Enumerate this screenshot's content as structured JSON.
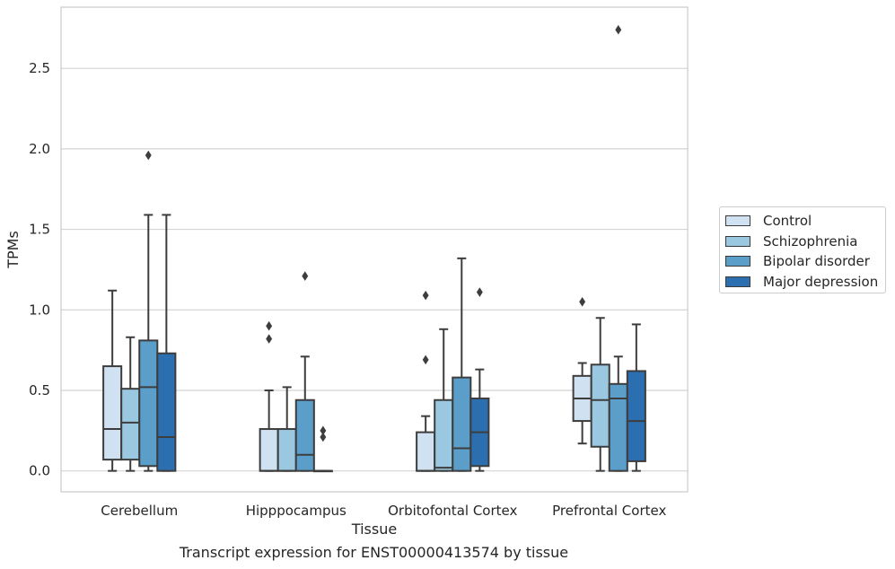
{
  "chart_data": {
    "type": "box",
    "title": "",
    "caption": "Transcript expression for ENST00000413574 by tissue",
    "xlabel": "Tissue",
    "ylabel": "TPMs",
    "ylim": [
      -0.13,
      2.88
    ],
    "yticks": [
      "0.0",
      "0.5",
      "1.0",
      "1.5",
      "2.0",
      "2.5"
    ],
    "grid": true,
    "legend_position": "outside-right",
    "categories": [
      "Cerebellum",
      "Hipppocampus",
      "Orbitofontal Cortex",
      "Prefrontal Cortex"
    ],
    "series": [
      {
        "name": "Control",
        "color": "#d0e1f2",
        "boxes": [
          {
            "whislo": 0.0,
            "q1": 0.07,
            "med": 0.26,
            "q3": 0.65,
            "whishi": 1.12,
            "fliers": []
          },
          {
            "whislo": 0.0,
            "q1": 0.0,
            "med": 0.0,
            "q3": 0.26,
            "whishi": 0.5,
            "fliers": [
              0.82,
              0.9
            ]
          },
          {
            "whislo": 0.0,
            "q1": 0.0,
            "med": 0.0,
            "q3": 0.24,
            "whishi": 0.34,
            "fliers": [
              0.69,
              1.09
            ]
          },
          {
            "whislo": 0.17,
            "q1": 0.31,
            "med": 0.45,
            "q3": 0.59,
            "whishi": 0.67,
            "fliers": [
              1.05
            ]
          }
        ]
      },
      {
        "name": "Schizophrenia",
        "color": "#9ac8e0",
        "boxes": [
          {
            "whislo": 0.0,
            "q1": 0.07,
            "med": 0.3,
            "q3": 0.51,
            "whishi": 0.83,
            "fliers": []
          },
          {
            "whislo": 0.0,
            "q1": 0.0,
            "med": 0.0,
            "q3": 0.26,
            "whishi": 0.52,
            "fliers": []
          },
          {
            "whislo": 0.0,
            "q1": 0.0,
            "med": 0.02,
            "q3": 0.44,
            "whishi": 0.88,
            "fliers": []
          },
          {
            "whislo": 0.0,
            "q1": 0.15,
            "med": 0.44,
            "q3": 0.66,
            "whishi": 0.95,
            "fliers": []
          }
        ]
      },
      {
        "name": "Bipolar disorder",
        "color": "#5a9ec9",
        "boxes": [
          {
            "whislo": 0.0,
            "q1": 0.03,
            "med": 0.52,
            "q3": 0.81,
            "whishi": 1.59,
            "fliers": [
              1.96
            ]
          },
          {
            "whislo": 0.0,
            "q1": 0.0,
            "med": 0.1,
            "q3": 0.44,
            "whishi": 0.71,
            "fliers": [
              1.21
            ]
          },
          {
            "whislo": 0.0,
            "q1": 0.0,
            "med": 0.14,
            "q3": 0.58,
            "whishi": 1.32,
            "fliers": []
          },
          {
            "whislo": 0.0,
            "q1": 0.0,
            "med": 0.45,
            "q3": 0.54,
            "whishi": 0.71,
            "fliers": [
              2.74
            ]
          }
        ]
      },
      {
        "name": "Major depression",
        "color": "#2c6fb0",
        "boxes": [
          {
            "whislo": 0.0,
            "q1": 0.0,
            "med": 0.21,
            "q3": 0.73,
            "whishi": 1.59,
            "fliers": []
          },
          {
            "whislo": 0.0,
            "q1": 0.0,
            "med": 0.0,
            "q3": 0.0,
            "whishi": 0.0,
            "fliers": [
              0.21,
              0.25
            ]
          },
          {
            "whislo": 0.0,
            "q1": 0.03,
            "med": 0.24,
            "q3": 0.45,
            "whishi": 0.63,
            "fliers": [
              1.11
            ]
          },
          {
            "whislo": 0.0,
            "q1": 0.06,
            "med": 0.31,
            "q3": 0.62,
            "whishi": 0.91,
            "fliers": []
          }
        ]
      }
    ]
  }
}
